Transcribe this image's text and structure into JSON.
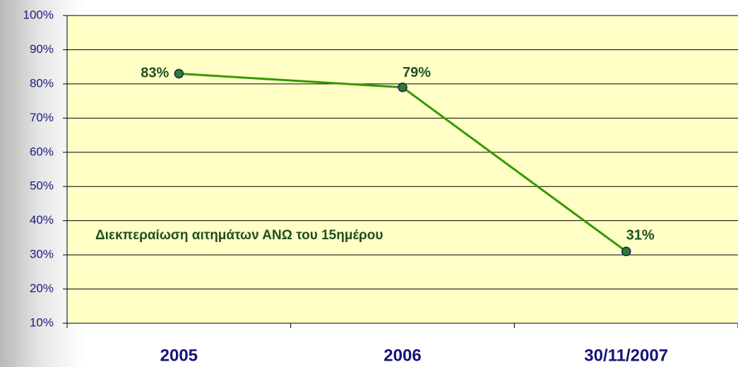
{
  "chart_data": {
    "type": "line",
    "categories": [
      "2005",
      "2006",
      "30/11/2007"
    ],
    "series": [
      {
        "name": null,
        "color": "#339900",
        "values": [
          83,
          79,
          31
        ],
        "value_labels": [
          "83%",
          "79%",
          "31%"
        ]
      }
    ],
    "ylim": [
      10,
      100
    ],
    "yticks": [
      {
        "value": 10,
        "label": "10%"
      },
      {
        "value": 20,
        "label": "20%"
      },
      {
        "value": 30,
        "label": "30%"
      },
      {
        "value": 40,
        "label": "40%"
      },
      {
        "value": 50,
        "label": "50%"
      },
      {
        "value": 60,
        "label": "60%"
      },
      {
        "value": 70,
        "label": "70%"
      },
      {
        "value": 80,
        "label": "80%"
      },
      {
        "value": 90,
        "label": "90%"
      },
      {
        "value": 100,
        "label": "100%"
      }
    ],
    "grid": true,
    "annotation": "Διεκπεραίωση αιτημάτων ΑΝΩ του 15ημέρου"
  }
}
